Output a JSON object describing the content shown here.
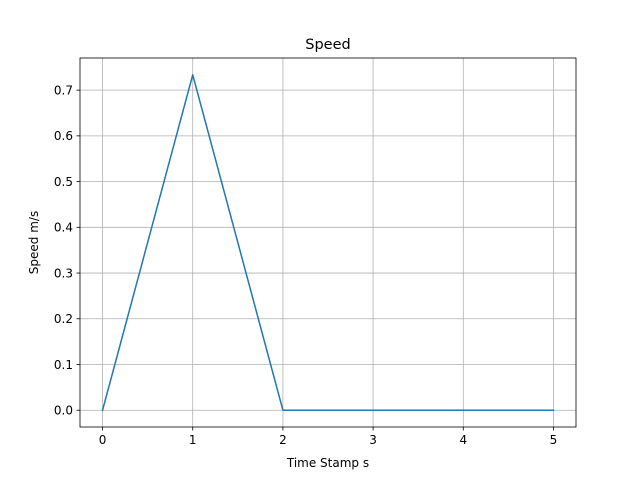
{
  "chart_data": {
    "type": "line",
    "title": "Speed",
    "xlabel": "Time Stamp s",
    "ylabel": "Speed m/s",
    "xlim": [
      -0.25,
      5.25
    ],
    "ylim": [
      -0.0367,
      0.7703
    ],
    "xticks": [
      0,
      1,
      2,
      3,
      4,
      5
    ],
    "xtick_labels": [
      "0",
      "1",
      "2",
      "3",
      "4",
      "5"
    ],
    "yticks": [
      0.0,
      0.1,
      0.2,
      0.3,
      0.4,
      0.5,
      0.6,
      0.7
    ],
    "ytick_labels": [
      "0.0",
      "0.1",
      "0.2",
      "0.3",
      "0.4",
      "0.5",
      "0.6",
      "0.7"
    ],
    "grid": true,
    "series": [
      {
        "color": "#1f77b4",
        "x": [
          0,
          1,
          2,
          3,
          4,
          5
        ],
        "y": [
          0.0,
          0.7336,
          0.0,
          0.0,
          0.0,
          0.0
        ]
      }
    ]
  }
}
